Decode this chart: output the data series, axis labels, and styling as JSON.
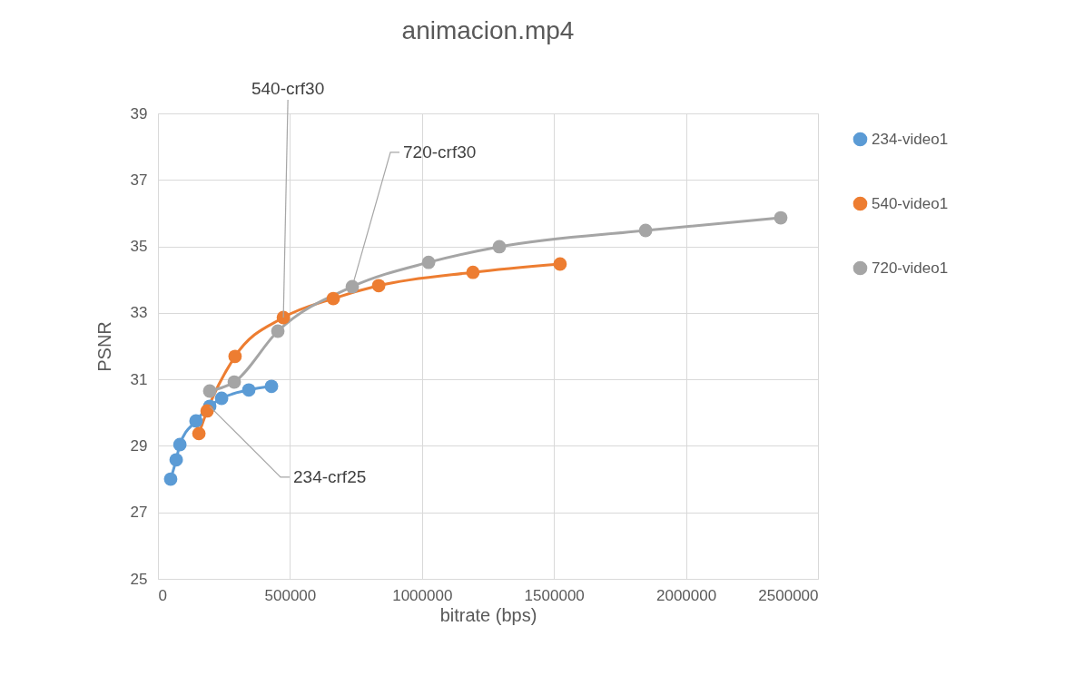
{
  "chart_data": {
    "type": "line",
    "title": "animacion.mp4",
    "xlabel": "bitrate (bps)",
    "ylabel": "PSNR",
    "series": [
      {
        "name": "234-video1",
        "color": "#5b9bd5",
        "x": [
          48000,
          69000,
          83000,
          144000,
          196000,
          241000,
          344000,
          430000
        ],
        "values": [
          28.0,
          28.58,
          29.04,
          29.75,
          30.19,
          30.43,
          30.68,
          30.79
        ]
      },
      {
        "name": "540-video1",
        "color": "#ed7d31",
        "x": [
          155000,
          186000,
          292000,
          475000,
          664000,
          836000,
          1193000,
          1523000
        ],
        "values": [
          29.37,
          30.05,
          31.69,
          32.86,
          33.43,
          33.82,
          34.22,
          34.47
        ]
      },
      {
        "name": "720-video1",
        "color": "#a5a5a5",
        "x": [
          196000,
          289000,
          454000,
          736000,
          1025000,
          1293000,
          1847000,
          2359000
        ],
        "values": [
          30.65,
          30.92,
          32.45,
          33.79,
          34.52,
          34.99,
          35.48,
          35.86
        ]
      }
    ],
    "xlim": [
      0,
      2500000
    ],
    "xticks": [
      0,
      500000,
      1000000,
      1500000,
      2000000,
      2500000
    ],
    "ylim": [
      25,
      39
    ],
    "yticks": [
      25,
      27,
      29,
      31,
      33,
      35,
      37,
      39
    ],
    "grid": true,
    "legend": "right",
    "marker": "circle",
    "line_style": "solid",
    "annotations": [
      {
        "text": "540-crf30",
        "x": 475000,
        "y": 32.86
      },
      {
        "text": "720-crf30",
        "x": 736000,
        "y": 33.79
      },
      {
        "text": "234-crf25",
        "x": 196000,
        "y": 30.19
      }
    ]
  }
}
